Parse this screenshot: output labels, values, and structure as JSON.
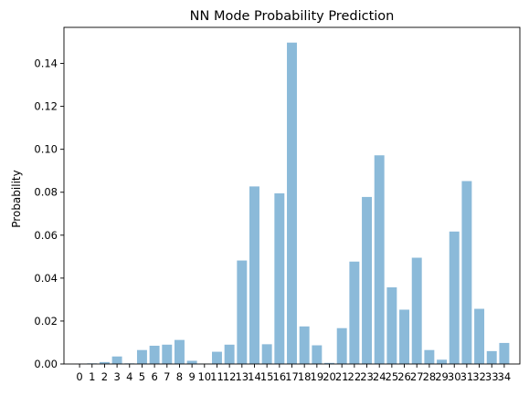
{
  "chart_data": {
    "type": "bar",
    "title": "NN Mode Probability Prediction",
    "xlabel": "",
    "ylabel": "Probability",
    "categories": [
      "0",
      "1",
      "2",
      "3",
      "4",
      "5",
      "6",
      "7",
      "8",
      "9",
      "10",
      "11",
      "12",
      "13",
      "14",
      "15",
      "16",
      "17",
      "18",
      "19",
      "20",
      "21",
      "22",
      "23",
      "24",
      "25",
      "26",
      "27",
      "28",
      "29",
      "30",
      "31",
      "32",
      "33",
      "34"
    ],
    "values": [
      0.0001,
      0.0003,
      0.0009,
      0.0035,
      0.0003,
      0.0065,
      0.0085,
      0.009,
      0.0112,
      0.0015,
      0.0002,
      0.0057,
      0.009,
      0.0482,
      0.0827,
      0.0092,
      0.0795,
      0.1497,
      0.0175,
      0.0087,
      0.0005,
      0.0167,
      0.0477,
      0.0778,
      0.0972,
      0.0357,
      0.0253,
      0.0495,
      0.0065,
      0.002,
      0.0617,
      0.0852,
      0.0257,
      0.006,
      0.0098
    ],
    "ylim": [
      0,
      0.1568
    ],
    "yticks": [
      "0.00",
      "0.02",
      "0.04",
      "0.06",
      "0.08",
      "0.10",
      "0.12",
      "0.14"
    ],
    "bar_color": "#8bbad9",
    "grid": false
  }
}
